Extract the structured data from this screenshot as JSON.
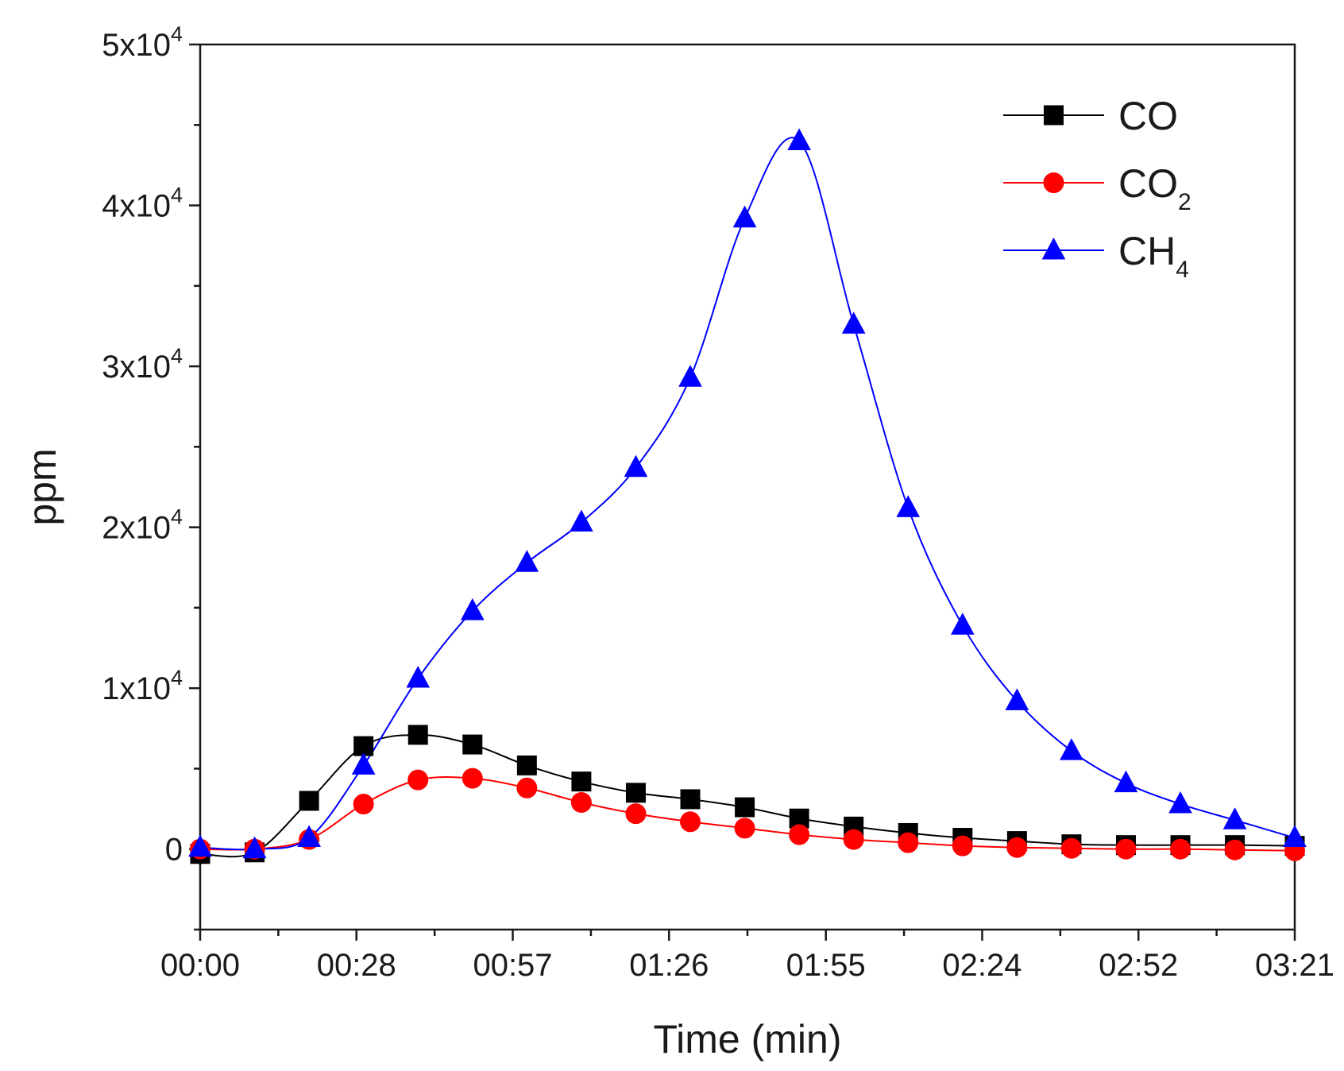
{
  "chart_data": {
    "type": "line",
    "title": "",
    "xlabel": "Time (min)",
    "ylabel": "ppm",
    "xlim": [
      0,
      201
    ],
    "ylim": [
      -5000,
      50000
    ],
    "x_tick_labels": [
      "00:00",
      "00:28",
      "00:57",
      "01:26",
      "01:55",
      "02:24",
      "02:52",
      "03:21"
    ],
    "x_tick_values": [
      0,
      28.7,
      57.4,
      86.1,
      114.9,
      143.6,
      172.3,
      201
    ],
    "y_tick_values": [
      0,
      10000,
      20000,
      30000,
      40000,
      50000
    ],
    "y_tick_labels": [
      {
        "mantissa": "0",
        "exp": ""
      },
      {
        "mantissa": "1x10",
        "exp": "4"
      },
      {
        "mantissa": "2x10",
        "exp": "4"
      },
      {
        "mantissa": "3x10",
        "exp": "4"
      },
      {
        "mantissa": "4x10",
        "exp": "4"
      },
      {
        "mantissa": "5x10",
        "exp": "4"
      }
    ],
    "x": [
      0,
      10,
      20,
      30,
      40,
      50,
      60,
      70,
      80,
      90,
      100,
      110,
      120,
      130,
      140,
      150,
      160,
      170,
      180,
      190,
      201
    ],
    "series": [
      {
        "name": "CO",
        "label_main": "CO",
        "label_sub": "",
        "color": "#000000",
        "marker": "square",
        "values": [
          -300,
          -200,
          3000,
          6400,
          7100,
          6500,
          5200,
          4200,
          3500,
          3100,
          2600,
          1900,
          1400,
          1000,
          700,
          500,
          300,
          250,
          250,
          250,
          200
        ]
      },
      {
        "name": "CO2",
        "label_main": "CO",
        "label_sub": "2",
        "color": "#ff0000",
        "marker": "circle",
        "values": [
          0,
          0,
          600,
          2800,
          4300,
          4400,
          3800,
          2900,
          2200,
          1700,
          1300,
          900,
          600,
          400,
          200,
          100,
          50,
          0,
          0,
          -50,
          -100
        ]
      },
      {
        "name": "CH4",
        "label_main": "CH",
        "label_sub": "4",
        "color": "#0000ff",
        "marker": "triangle",
        "values": [
          100,
          0,
          700,
          5200,
          10600,
          14800,
          17800,
          20300,
          23700,
          29300,
          39200,
          44000,
          32600,
          21200,
          13900,
          9200,
          6100,
          4100,
          2800,
          1800,
          700
        ]
      }
    ],
    "legend_position": "top-right"
  }
}
